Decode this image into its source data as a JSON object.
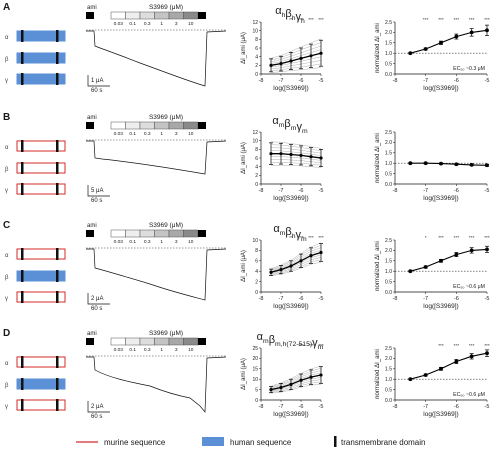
{
  "figure": {
    "legend": {
      "murine": "murine sequence",
      "human": "human sequence",
      "tm": "transmembrane domain"
    },
    "colors": {
      "human_fill": "#5b8fd6",
      "murine_stroke": "#d42a2a",
      "ink": "#1a1a1a",
      "grey_trace": "#9a9a9a"
    },
    "subunits": [
      "α",
      "β",
      "γ"
    ],
    "amiloride_label": "ami",
    "compound_label": "S3969 (μM)",
    "concentrations": [
      "0.03",
      "0.1",
      "0.3",
      "1",
      "3",
      "10"
    ],
    "x_ticks": [
      "-8",
      "-7",
      "-6",
      "-5"
    ],
    "xlabel_mid": "log([S3969])",
    "xlabel_right": "log([S3969])",
    "ylabel_mid": "ΔI_ami (μA)",
    "ylabel_right": "normalized ΔI_ami",
    "right_ticks": [
      "0.0",
      "0.5",
      "1.0",
      "1.5",
      "2.0",
      "2.5"
    ],
    "panels": [
      {
        "letter": "A",
        "title": "α_h β_h γ_h",
        "chain": [
          "human",
          "human",
          "human"
        ],
        "scale_current": "1 μA",
        "scale_time": "60 s",
        "mid_ticks": [
          "0",
          "2",
          "4",
          "6",
          "8",
          "10",
          "12"
        ],
        "sig_mid": [
          "**",
          "***",
          "***",
          "***"
        ],
        "sig_right": [
          "***",
          "***",
          "***",
          "***",
          "***"
        ],
        "ec50": "EC₅₀ ~0.3 μM"
      },
      {
        "letter": "B",
        "title": "α_m β_m γ_m",
        "chain": [
          "murine",
          "murine",
          "murine"
        ],
        "scale_current": "5 μA",
        "scale_time": "60 s",
        "mid_ticks": [
          "0",
          "2",
          "4",
          "6",
          "8",
          "10",
          "12"
        ],
        "sig_mid": [],
        "sig_right": [],
        "ec50": ""
      },
      {
        "letter": "C",
        "title": "α_m β_h γ_m",
        "chain": [
          "murine",
          "human",
          "murine"
        ],
        "scale_current": "2 μA",
        "scale_time": "60 s",
        "mid_ticks": [
          "0",
          "2",
          "4",
          "6",
          "8",
          "10"
        ],
        "sig_mid": [
          "**",
          "***",
          "***",
          "***"
        ],
        "sig_right": [
          "*",
          "***",
          "***",
          "***",
          "***"
        ],
        "ec50": "EC₅₀ ~0.6 μM"
      },
      {
        "letter": "D",
        "title": "α_m β_m,h(72-515) γ_m",
        "chain": [
          "murine",
          "human",
          "murine"
        ],
        "scale_current": "2 μA",
        "scale_time": "60 s",
        "mid_ticks": [
          "0",
          "5",
          "10",
          "15",
          "20",
          "25"
        ],
        "sig_mid": [
          "***",
          "***",
          "***"
        ],
        "sig_right": [
          "***",
          "***",
          "***",
          "***"
        ],
        "ec50": "EC₅₀ ~0.6 μM"
      }
    ]
  },
  "chart_data": [
    {
      "type": "line",
      "panel": "A",
      "plot": "absolute",
      "x": [
        -7.5,
        -7,
        -6.5,
        -6,
        -5.5,
        -5
      ],
      "series": [
        {
          "values": [
            2.0,
            2.4,
            3.0,
            3.6,
            4.2,
            4.8
          ],
          "err": [
            1.5,
            1.7,
            2.0,
            2.4,
            2.7,
            3.0
          ]
        }
      ],
      "xlim": [
        -8,
        -5
      ],
      "ylim": [
        0,
        12
      ],
      "xlabel": "log([S3969])",
      "ylabel": "ΔI_ami (μA)"
    },
    {
      "type": "line",
      "panel": "A",
      "plot": "normalized",
      "x": [
        -7.5,
        -7,
        -6.5,
        -6,
        -5.5,
        -5
      ],
      "series": [
        {
          "values": [
            1.0,
            1.2,
            1.5,
            1.8,
            2.0,
            2.1
          ],
          "err": [
            0.03,
            0.05,
            0.08,
            0.12,
            0.18,
            0.25
          ]
        }
      ],
      "xlim": [
        -8,
        -5
      ],
      "ylim": [
        0,
        2.5
      ],
      "xlabel": "log([S3969])",
      "ylabel": "normalized ΔI_ami"
    },
    {
      "type": "line",
      "panel": "B",
      "plot": "absolute",
      "x": [
        -7.5,
        -7,
        -6.5,
        -6,
        -5.5,
        -5
      ],
      "series": [
        {
          "values": [
            7.0,
            7.0,
            6.8,
            6.6,
            6.3,
            6.0
          ],
          "err": [
            2.5,
            2.4,
            2.3,
            2.2,
            2.1,
            2.0
          ]
        }
      ],
      "xlim": [
        -8,
        -5
      ],
      "ylim": [
        0,
        12
      ],
      "xlabel": "log([S3969])",
      "ylabel": "ΔI_ami (μA)"
    },
    {
      "type": "line",
      "panel": "B",
      "plot": "normalized",
      "x": [
        -7.5,
        -7,
        -6.5,
        -6,
        -5.5,
        -5
      ],
      "series": [
        {
          "values": [
            1.0,
            1.0,
            0.98,
            0.95,
            0.92,
            0.9
          ],
          "err": [
            0.03,
            0.03,
            0.03,
            0.04,
            0.04,
            0.05
          ]
        }
      ],
      "xlim": [
        -8,
        -5
      ],
      "ylim": [
        0,
        2.5
      ],
      "xlabel": "log([S3969])",
      "ylabel": "normalized ΔI_ami"
    },
    {
      "type": "line",
      "panel": "C",
      "plot": "absolute",
      "x": [
        -7.5,
        -7,
        -6.5,
        -6,
        -5.5,
        -5
      ],
      "series": [
        {
          "values": [
            3.8,
            4.3,
            5.0,
            6.0,
            7.0,
            7.6
          ],
          "err": [
            0.6,
            0.8,
            1.0,
            1.3,
            1.5,
            1.7
          ]
        }
      ],
      "xlim": [
        -8,
        -5
      ],
      "ylim": [
        0,
        10
      ],
      "xlabel": "log([S3969])",
      "ylabel": "ΔI_ami (μA)"
    },
    {
      "type": "line",
      "panel": "C",
      "plot": "normalized",
      "x": [
        -7.5,
        -7,
        -6.5,
        -6,
        -5.5,
        -5
      ],
      "series": [
        {
          "values": [
            1.0,
            1.2,
            1.5,
            1.8,
            2.0,
            2.05
          ],
          "err": [
            0.03,
            0.05,
            0.07,
            0.1,
            0.13,
            0.15
          ]
        }
      ],
      "xlim": [
        -8,
        -5
      ],
      "ylim": [
        0,
        2.5
      ],
      "xlabel": "log([S3969])",
      "ylabel": "normalized ΔI_ami"
    },
    {
      "type": "line",
      "panel": "D",
      "plot": "absolute",
      "x": [
        -7.5,
        -7,
        -6.5,
        -6,
        -5.5,
        -5
      ],
      "series": [
        {
          "values": [
            5.0,
            6.0,
            7.5,
            9.5,
            11.0,
            12.0
          ],
          "err": [
            1.5,
            2.0,
            2.5,
            3.0,
            3.5,
            4.0
          ]
        }
      ],
      "xlim": [
        -8,
        -5
      ],
      "ylim": [
        0,
        25
      ],
      "xlabel": "log([S3969])",
      "ylabel": "ΔI_ami (μA)"
    },
    {
      "type": "line",
      "panel": "D",
      "plot": "normalized",
      "x": [
        -7.5,
        -7,
        -6.5,
        -6,
        -5.5,
        -5
      ],
      "series": [
        {
          "values": [
            1.0,
            1.2,
            1.5,
            1.85,
            2.1,
            2.25
          ],
          "err": [
            0.03,
            0.05,
            0.07,
            0.1,
            0.13,
            0.16
          ]
        }
      ],
      "xlim": [
        -8,
        -5
      ],
      "ylim": [
        0,
        2.5
      ],
      "xlabel": "log([S3969])",
      "ylabel": "normalized ΔI_ami"
    }
  ]
}
